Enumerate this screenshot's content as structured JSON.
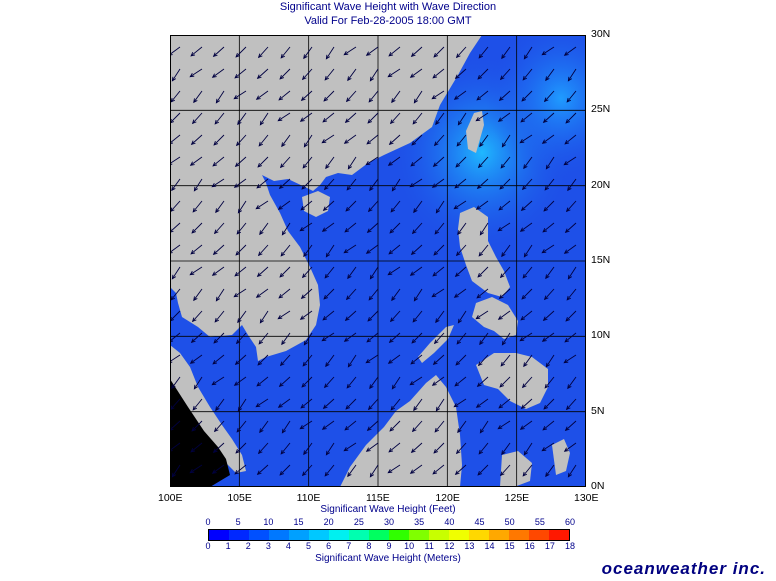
{
  "title": {
    "line1": "Significant Wave Height with Wave Direction",
    "line2": "Valid For Feb-28-2005 18:00 GMT"
  },
  "map": {
    "lon_labels": [
      "100E",
      "105E",
      "110E",
      "115E",
      "120E",
      "125E",
      "130E"
    ],
    "lat_labels": [
      "30N",
      "25N",
      "20N",
      "15N",
      "10N",
      "5N",
      "0N"
    ],
    "lon_range": [
      100,
      130
    ],
    "lat_range": [
      0,
      30
    ],
    "land_color": "#c0c0c0",
    "ocean_color": "#1e50e8",
    "ocean_high_color": "#1fb8ff",
    "arrow_color": "#000040",
    "grid_color": "#000000"
  },
  "scale": {
    "feet_ticks": [
      "0",
      "5",
      "10",
      "15",
      "20",
      "25",
      "30",
      "35",
      "40",
      "45",
      "50",
      "55",
      "60"
    ],
    "feet_caption": "Significant Wave Height (Feet)",
    "meter_ticks": [
      "0",
      "1",
      "2",
      "3",
      "4",
      "5",
      "6",
      "7",
      "8",
      "9",
      "10",
      "11",
      "12",
      "13",
      "14",
      "15",
      "16",
      "17",
      "18"
    ],
    "meter_caption": "Significant Wave Height (Meters)",
    "colors": [
      "#0000ff",
      "#0028ff",
      "#0050ff",
      "#0078ff",
      "#00a0ff",
      "#00c8ff",
      "#00f0f0",
      "#00ffb0",
      "#00ff60",
      "#30ff00",
      "#80ff00",
      "#c8ff00",
      "#f0ff00",
      "#ffd800",
      "#ffa800",
      "#ff7800",
      "#ff4800",
      "#ff1800"
    ]
  },
  "brand": "oceanweather inc."
}
